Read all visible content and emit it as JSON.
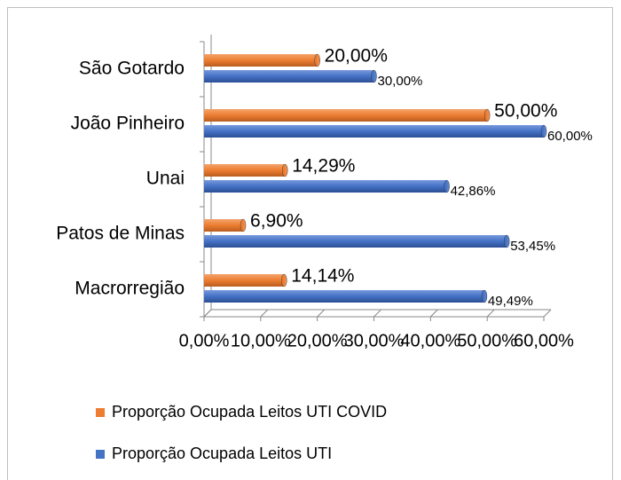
{
  "chart_data": {
    "type": "bar",
    "orientation": "horizontal",
    "categories": [
      "São Gotardo",
      "João Pinheiro",
      "Unai",
      "Patos de Minas",
      "Macrorregião"
    ],
    "series": [
      {
        "name": "Proporção Ocupada Leitos UTI COVID",
        "color": "#ed7d31",
        "values": [
          20.0,
          50.0,
          14.29,
          6.9,
          14.14
        ],
        "value_labels": [
          "20,00%",
          "50,00%",
          "14,29%",
          "6,90%",
          "14,14%"
        ]
      },
      {
        "name": "Proporção Ocupada Leitos UTI",
        "color": "#4472c4",
        "values": [
          30.0,
          60.0,
          42.86,
          53.45,
          49.49
        ],
        "value_labels": [
          "30,00%",
          "60,00%",
          "42,86%",
          "53,45%",
          "49,49%"
        ]
      }
    ],
    "xlim": [
      0,
      60
    ],
    "xticks": [
      {
        "value": 0,
        "label": "0,00%"
      },
      {
        "value": 10,
        "label": "10,00%"
      },
      {
        "value": 20,
        "label": "20,00%"
      },
      {
        "value": 30,
        "label": "30,00%"
      },
      {
        "value": 40,
        "label": "40,00%"
      },
      {
        "value": 50,
        "label": "50,00%"
      },
      {
        "value": 60,
        "label": "60,00%"
      }
    ],
    "legend": "bottom"
  }
}
